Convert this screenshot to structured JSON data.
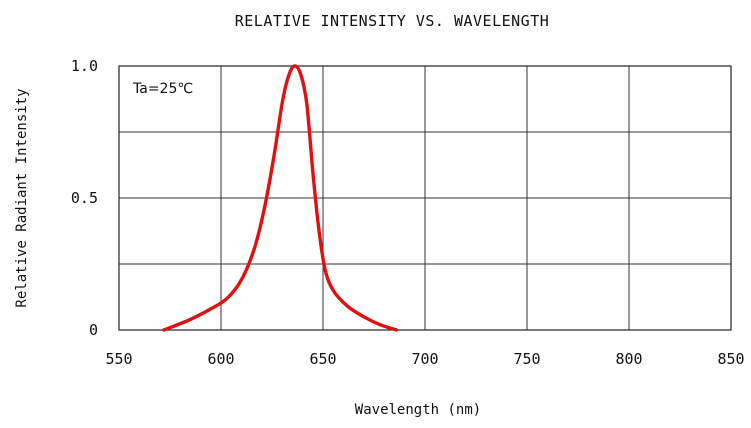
{
  "chart_data": {
    "type": "line",
    "title": "RELATIVE INTENSITY VS. WAVELENGTH",
    "xlabel": "Wavelength (nm)",
    "ylabel": "Relative Radiant Intensity",
    "annotation": "Ta=25℃",
    "xlim": [
      550,
      850
    ],
    "ylim": [
      0,
      1.0
    ],
    "x_ticks": [
      550,
      600,
      650,
      700,
      750,
      800,
      850
    ],
    "y_ticks": [
      0,
      0.5,
      1.0
    ],
    "y_tick_labels": [
      "0",
      "0.5",
      "1.0"
    ],
    "grid": true,
    "line_color": "#e01010",
    "series": [
      {
        "x": [
          572,
          585,
          595,
          603,
          610,
          616,
          621,
          626,
          630,
          633,
          636,
          639,
          642,
          645,
          648,
          651,
          655,
          662,
          670,
          678,
          686
        ],
        "y": [
          0.0,
          0.04,
          0.08,
          0.12,
          0.19,
          0.3,
          0.45,
          0.66,
          0.86,
          0.96,
          1.0,
          0.97,
          0.86,
          0.6,
          0.38,
          0.23,
          0.15,
          0.09,
          0.05,
          0.02,
          0.0
        ]
      }
    ]
  }
}
